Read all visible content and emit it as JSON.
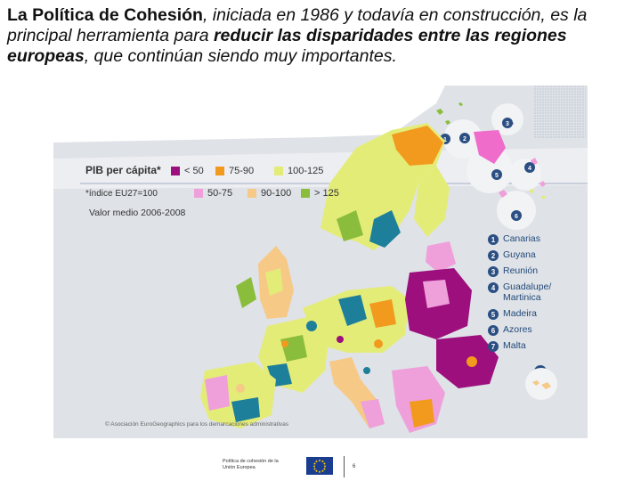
{
  "intro": {
    "p1_bold": "La Política de Cohesión",
    "p2": ", iniciada en 1986 y todavía en construcción, es la principal herramienta para ",
    "p3_bold": "reducir las disparidades entre las regiones europeas",
    "p4": ", que continúan siendo muy importantes."
  },
  "map": {
    "legend_title": "PIB per cápita*",
    "legend_subtitle": "*índice EU27=100",
    "legend_period": "Valor medio 2006-2008",
    "classes": [
      {
        "label": "< 50",
        "color": "#9c0f7c"
      },
      {
        "label": "75-90",
        "color": "#f29a1e"
      },
      {
        "label": "100-125",
        "color": "#e4ec78"
      },
      {
        "label": "50-75",
        "color": "#ef9fda"
      },
      {
        "label": "90-100",
        "color": "#f6c987"
      },
      {
        "label": "> 125",
        "color": "#8bbd3c"
      }
    ],
    "outermost_regions": [
      {
        "num": "1",
        "name": "Canarias"
      },
      {
        "num": "2",
        "name": "Guyana"
      },
      {
        "num": "3",
        "name": "Reunión"
      },
      {
        "num": "4",
        "name": "Guadalupe/\nMartinica"
      },
      {
        "num": "5",
        "name": "Madeira"
      },
      {
        "num": "6",
        "name": "Azores"
      },
      {
        "num": "7",
        "name": "Malta"
      }
    ],
    "credit": "© Asociación EuroGeographics para los demarcaciones administrativas",
    "inset_numbers": [
      "1",
      "2",
      "3",
      "4",
      "5",
      "6",
      "7"
    ],
    "colors": {
      "sea": "#d9dde3",
      "nonEU": "#f4f4f4",
      "teal": "#1d7f9a",
      "pink": "#ef9fda"
    }
  },
  "footer": {
    "text": "Política de cohesión de la\nUnión Europea",
    "page": "6"
  }
}
